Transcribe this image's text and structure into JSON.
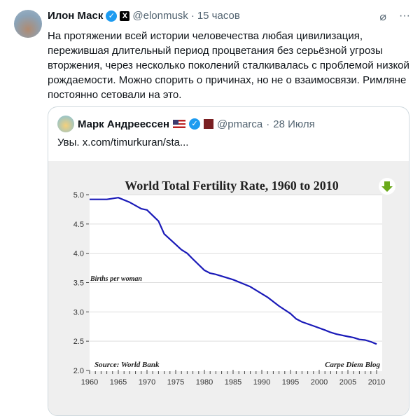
{
  "tweet": {
    "author": "Илон Маск",
    "handle": "@elonmusk",
    "separator": "·",
    "time": "15 часов",
    "text": "На протяжении всей истории человечества любая цивилизация, пережившая длительный период процветания без серьёзной угрозы вторжения, через несколько поколений сталкивалась с проблемой низкой рождаемости. Можно спорить о причинах, но не о взаимосвязи. Римляне постоянно сетовали на это.",
    "icons": [
      "avatar",
      "verified-badge",
      "x-affiliate-badge",
      "grok-icon",
      "more-icon"
    ]
  },
  "quote": {
    "author": "Марк Андреессен",
    "handle": "@pmarca",
    "separator": "·",
    "date": "28 Июля",
    "text": "Увы.  x.com/timurkuran/sta...",
    "affiliate_badge": "a16z"
  },
  "chart_data": {
    "type": "line",
    "title": "World Total Fertility Rate, 1960 to 2010",
    "ylabel": "Births per woman",
    "source": "Source: World Bank",
    "credit": "Carpe Diem Blog",
    "xlim": [
      1960,
      2010
    ],
    "ylim": [
      2.0,
      5.0
    ],
    "xticks": [
      "1960",
      "1965",
      "1970",
      "1975",
      "1980",
      "1985",
      "1990",
      "1995",
      "2000",
      "2005",
      "2010"
    ],
    "yticks": [
      "2.0",
      "2.5",
      "3.0",
      "3.5",
      "4.0",
      "4.5",
      "5.0"
    ],
    "grid": true,
    "line_color": "#1a1ab8",
    "x": [
      1960,
      1963,
      1965,
      1967,
      1969,
      1970,
      1972,
      1973,
      1975,
      1976,
      1977,
      1978,
      1980,
      1981,
      1982,
      1984,
      1985,
      1987,
      1988,
      1990,
      1991,
      1993,
      1995,
      1996,
      1997,
      1999,
      2001,
      2002,
      2003,
      2005,
      2006,
      2007,
      2008,
      2009,
      2010
    ],
    "y": [
      4.92,
      4.92,
      4.95,
      4.87,
      4.76,
      4.74,
      4.55,
      4.33,
      4.15,
      4.06,
      4.0,
      3.9,
      3.71,
      3.66,
      3.64,
      3.58,
      3.55,
      3.47,
      3.43,
      3.31,
      3.25,
      3.1,
      2.97,
      2.88,
      2.83,
      2.76,
      2.69,
      2.65,
      2.62,
      2.58,
      2.56,
      2.53,
      2.52,
      2.49,
      2.45
    ]
  }
}
